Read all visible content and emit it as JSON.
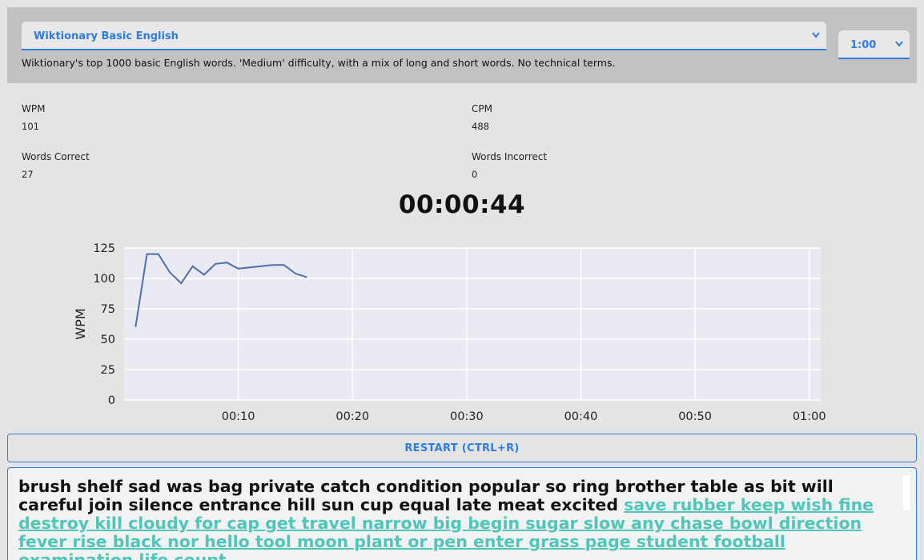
{
  "word_list_select": {
    "value": "Wiktionary Basic English",
    "icon": "chevron-down-icon"
  },
  "duration_select": {
    "value": "1:00",
    "icon": "chevron-down-icon"
  },
  "description": "Wiktionary's top 1000 basic English words. 'Medium' difficulty, with a mix of long and short words. No technical terms.",
  "stats": {
    "wpm": {
      "label": "WPM",
      "value": "101"
    },
    "cpm": {
      "label": "CPM",
      "value": "488"
    },
    "words_correct": {
      "label": "Words Correct",
      "value": "27"
    },
    "words_incorrect": {
      "label": "Words Incorrect",
      "value": "0"
    }
  },
  "timer": "00:00:44",
  "chart_data": {
    "type": "line",
    "ylabel": "WPM",
    "ylim": [
      0,
      125
    ],
    "yticks": [
      "0",
      "25",
      "50",
      "75",
      "100",
      "125"
    ],
    "xlim": [
      0,
      61
    ],
    "xticks": [
      {
        "value": 10,
        "label": "00:10"
      },
      {
        "value": 20,
        "label": "00:20"
      },
      {
        "value": 30,
        "label": "00:30"
      },
      {
        "value": 40,
        "label": "00:40"
      },
      {
        "value": 50,
        "label": "00:50"
      },
      {
        "value": 60,
        "label": "01:00"
      }
    ],
    "grid": true,
    "colors": {
      "line": "#4c6fae",
      "plot_bg": "#eaeaf2",
      "grid": "#ffffff"
    },
    "series": [
      {
        "x": [
          1,
          2,
          3,
          4,
          5,
          6,
          7,
          8,
          9,
          10,
          11,
          12,
          13,
          14,
          15,
          16
        ],
        "y": [
          60,
          120,
          120,
          105,
          96,
          110,
          103,
          112,
          113,
          108,
          109,
          110,
          111,
          111,
          104,
          101
        ]
      }
    ]
  },
  "restart_button": "RESTART (CTRL+R)",
  "typing": {
    "typed": "brush shelf sad was bag private catch condition popular so ring brother table as bit will careful join silence entrance hill sun cup equal late meat excited ",
    "pending": "save rubber keep wish fine destroy kill cloudy for cap get travel narrow big begin sugar slow any chase bowl direction fever rise black nor hello tool moon plant or pen enter grass page student football examination life count"
  },
  "colors": {
    "accent": "#2e7be2",
    "pending_text": "#4ec6b9",
    "top_panel": "#c2c2c2"
  }
}
